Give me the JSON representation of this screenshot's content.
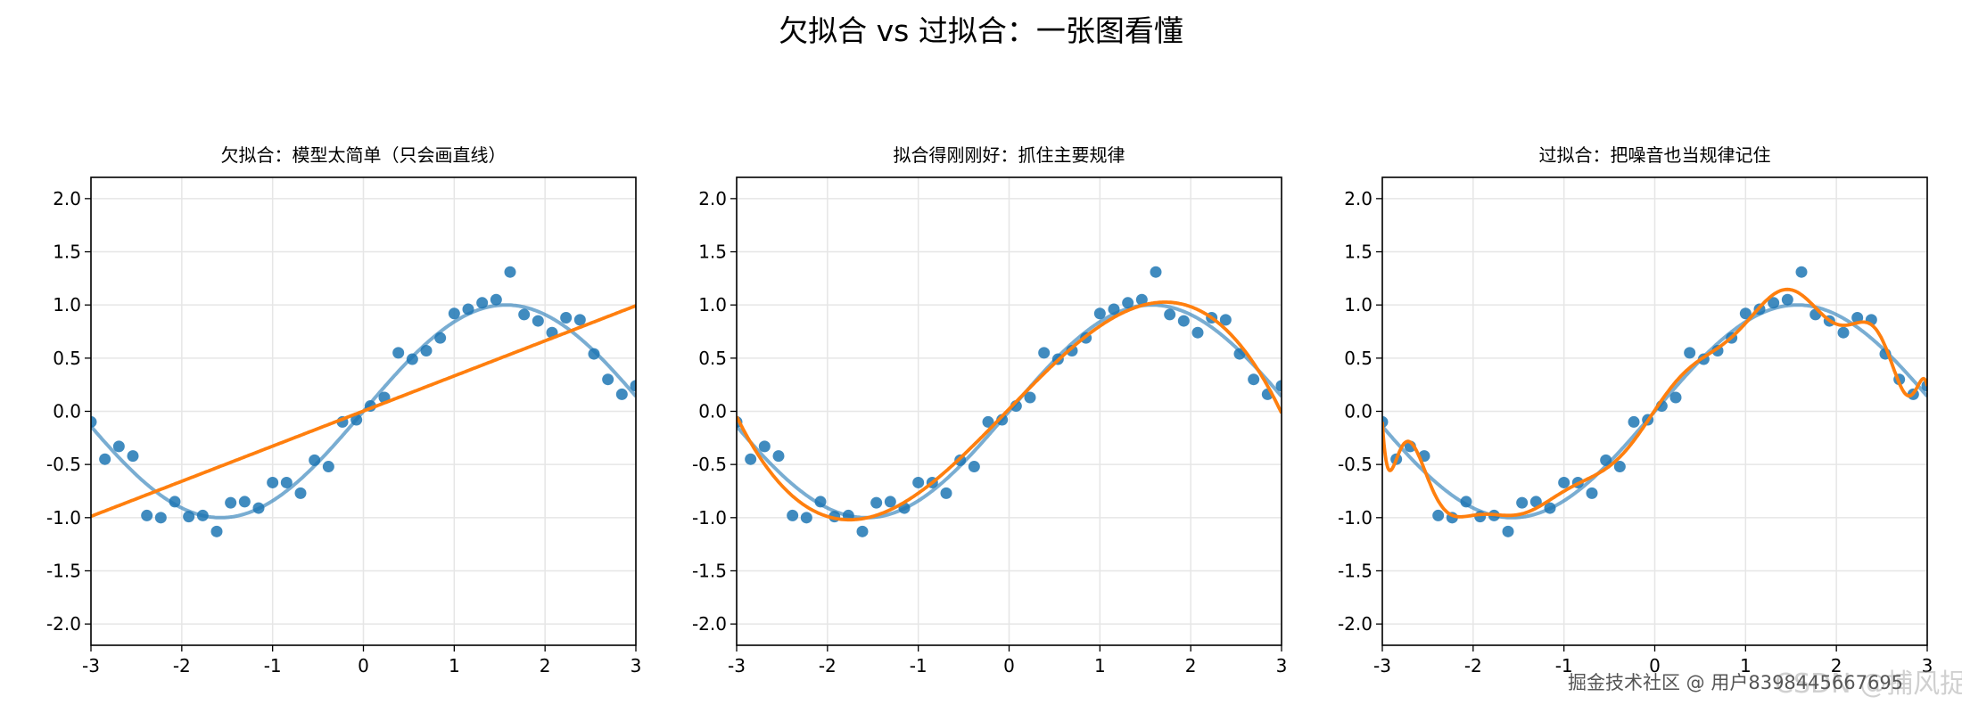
{
  "suptitle": "欠拟合 vs 过拟合：一张图看懂",
  "watermark": "掘金技术社区 @ 用户8398445667695",
  "watermark_faded": "CSDN @捕风捉你",
  "colors": {
    "points": "#1f77b4",
    "true_curve": "#1f77b4",
    "fit": "#ff7f0e",
    "grid": "#e6e6e6"
  },
  "chart_data": [
    {
      "type": "scatter",
      "title": "欠拟合：模型太简单（只会画直线）",
      "fit": "linear",
      "xlim": [
        -3,
        3
      ],
      "ylim": [
        -2.2,
        2.2
      ],
      "grid": true,
      "xticks": [
        "-3",
        "-2",
        "-1",
        "0",
        "1",
        "2",
        "3"
      ],
      "yticks": [
        "-2.0",
        "-1.5",
        "-1.0",
        "-0.5",
        "0.0",
        "0.5",
        "1.0",
        "1.5",
        "2.0"
      ]
    },
    {
      "type": "scatter",
      "title": "拟合得刚刚好：抓住主要规律",
      "fit": "polynomial-smooth",
      "xlim": [
        -3,
        3
      ],
      "ylim": [
        -2.2,
        2.2
      ],
      "grid": true,
      "xticks": [
        "-3",
        "-2",
        "-1",
        "0",
        "1",
        "2",
        "3"
      ],
      "yticks": [
        "-2.0",
        "-1.5",
        "-1.0",
        "-0.5",
        "0.0",
        "0.5",
        "1.0",
        "1.5",
        "2.0"
      ]
    },
    {
      "type": "scatter",
      "title": "过拟合：把噪音也当规律记住",
      "fit": "polynomial-wiggly",
      "xlim": [
        -3,
        3
      ],
      "ylim": [
        -2.2,
        2.2
      ],
      "grid": true,
      "xticks": [
        "-3",
        "-2",
        "-1",
        "0",
        "1",
        "2",
        "3"
      ],
      "yticks": [
        "-2.0",
        "-1.5",
        "-1.0",
        "-0.5",
        "0.0",
        "0.5",
        "1.0",
        "1.5",
        "2.0"
      ]
    }
  ],
  "points": {
    "x_range": [
      -3,
      3
    ],
    "y": [
      -0.1,
      -0.45,
      -0.33,
      -0.42,
      -0.98,
      -1.0,
      -0.85,
      -0.99,
      -0.98,
      -1.13,
      -0.86,
      -0.85,
      -0.91,
      -0.67,
      -0.67,
      -0.77,
      -0.46,
      -0.52,
      -0.1,
      -0.08,
      0.05,
      0.13,
      0.55,
      0.49,
      0.57,
      0.69,
      0.92,
      0.96,
      1.02,
      1.05,
      1.31,
      0.91,
      0.85,
      0.74,
      0.88,
      0.86,
      0.54,
      0.3,
      0.16,
      0.24
    ]
  },
  "true_function": "sin(x)"
}
